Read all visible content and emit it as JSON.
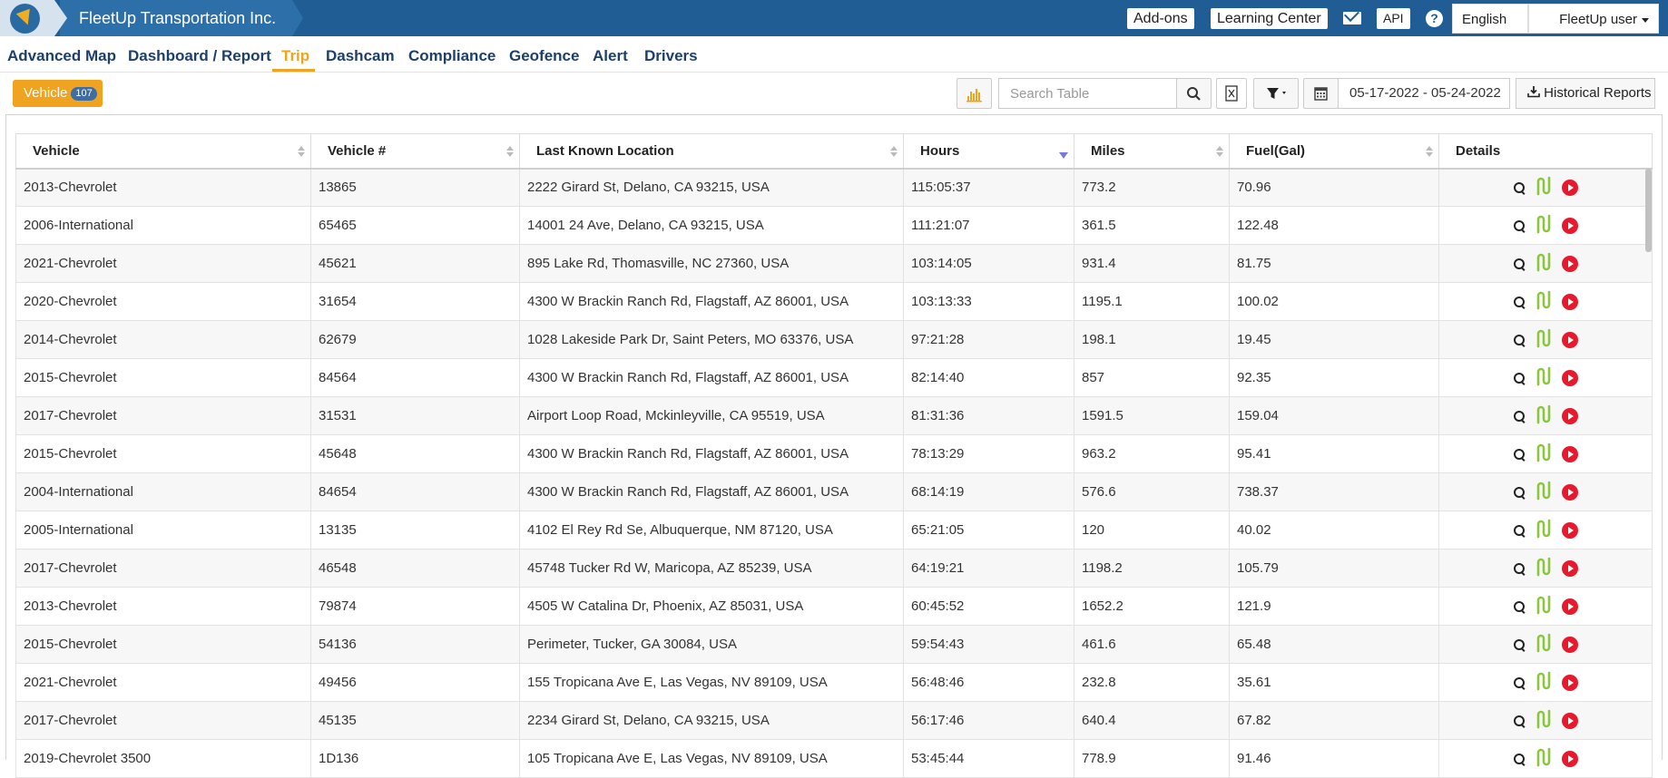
{
  "header": {
    "company": "FleetUp Transportation Inc.",
    "addons": "Add-ons",
    "learning": "Learning Center",
    "api": "API",
    "language": "English",
    "user": "FleetUp user"
  },
  "nav": [
    "Advanced Map",
    "Dashboard / Report",
    "Trip",
    "Dashcam",
    "Compliance",
    "Geofence",
    "Alert",
    "Drivers"
  ],
  "nav_active": "Trip",
  "toolbar": {
    "vehicle_label": "Vehicle",
    "vehicle_count": "107",
    "search_placeholder": "Search Table",
    "date_range": "05-17-2022 - 05-24-2022",
    "historical": "Historical Reports"
  },
  "table": {
    "columns": [
      "Vehicle",
      "Vehicle #",
      "Last Known Location",
      "Hours",
      "Miles",
      "Fuel(Gal)",
      "Details"
    ],
    "sorted_column": "Hours",
    "rows": [
      [
        "2013-Chevrolet",
        "13865",
        "2222 Girard St, Delano, CA 93215, USA",
        "115:05:37",
        "773.2",
        "70.96"
      ],
      [
        "2006-International",
        "65465",
        "14001 24 Ave, Delano, CA 93215, USA",
        "111:21:07",
        "361.5",
        "122.48"
      ],
      [
        "2021-Chevrolet",
        "45621",
        "895 Lake Rd, Thomasville, NC 27360, USA",
        "103:14:05",
        "931.4",
        "81.75"
      ],
      [
        "2020-Chevrolet",
        "31654",
        "4300 W Brackin Ranch Rd, Flagstaff, AZ 86001, USA",
        "103:13:33",
        "1195.1",
        "100.02"
      ],
      [
        "2014-Chevrolet",
        "62679",
        "1028 Lakeside Park Dr, Saint Peters, MO 63376, USA",
        "97:21:28",
        "198.1",
        "19.45"
      ],
      [
        "2015-Chevrolet",
        "84564",
        "4300 W Brackin Ranch Rd, Flagstaff, AZ 86001, USA",
        "82:14:40",
        "857",
        "92.35"
      ],
      [
        "2017-Chevrolet",
        "31531",
        "Airport Loop Road, Mckinleyville, CA 95519, USA",
        "81:31:36",
        "1591.5",
        "159.04"
      ],
      [
        "2015-Chevrolet",
        "45648",
        "4300 W Brackin Ranch Rd, Flagstaff, AZ 86001, USA",
        "78:13:29",
        "963.2",
        "95.41"
      ],
      [
        "2004-International",
        "84654",
        "4300 W Brackin Ranch Rd, Flagstaff, AZ 86001, USA",
        "68:14:19",
        "576.6",
        "738.37"
      ],
      [
        "2005-International",
        "13135",
        "4102 El Rey Rd Se, Albuquerque, NM 87120, USA",
        "65:21:05",
        "120",
        "40.02"
      ],
      [
        "2017-Chevrolet",
        "46548",
        "45748 Tucker Rd W, Maricopa, AZ 85239, USA",
        "64:19:21",
        "1198.2",
        "105.79"
      ],
      [
        "2013-Chevrolet",
        "79874",
        "4505 W Catalina Dr, Phoenix, AZ 85031, USA",
        "60:45:52",
        "1652.2",
        "121.9"
      ],
      [
        "2015-Chevrolet",
        "54136",
        "Perimeter, Tucker, GA 30084, USA",
        "59:54:43",
        "461.6",
        "65.48"
      ],
      [
        "2021-Chevrolet",
        "49456",
        "155 Tropicana Ave E, Las Vegas, NV 89109, USA",
        "56:48:46",
        "232.8",
        "35.61"
      ],
      [
        "2017-Chevrolet",
        "45135",
        "2234 Girard St, Delano, CA 93215, USA",
        "56:17:46",
        "640.4",
        "67.82"
      ],
      [
        "2019-Chevrolet 3500",
        "1D136",
        "105 Tropicana Ave E, Las Vegas, NV 89109, USA",
        "53:45:44",
        "778.9",
        "91.46"
      ]
    ]
  }
}
